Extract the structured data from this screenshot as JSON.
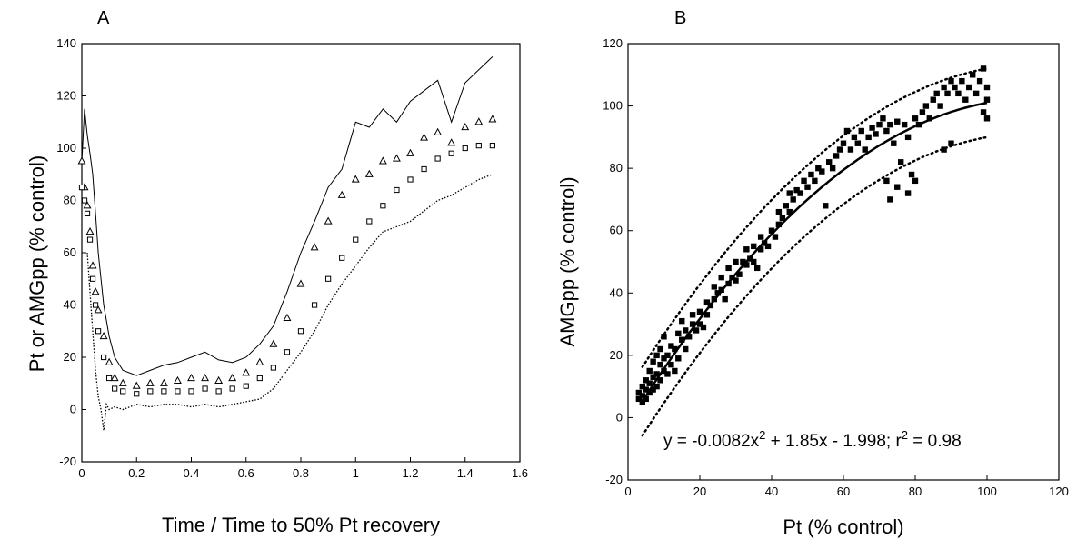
{
  "chart_data": [
    {
      "panel_label": "A",
      "type": "line",
      "xlabel": "Time / Time to 50% Pt recovery",
      "ylabel": "Pt or  AMGpp (% control)",
      "xlim": [
        0,
        1.6
      ],
      "ylim": [
        -20,
        140
      ],
      "xticks": [
        0,
        0.2,
        0.4,
        0.6,
        0.8,
        1,
        1.2,
        1.4,
        1.6
      ],
      "yticks": [
        -20,
        0,
        20,
        40,
        60,
        80,
        100,
        120,
        140
      ],
      "xtick_labels": [
        "0",
        "0.2",
        "0.4",
        "0.6",
        "0.8",
        "1",
        "1.2",
        "1.4",
        "1.6"
      ],
      "ytick_labels": [
        "-20",
        "0",
        "20",
        "40",
        "60",
        "80",
        "100",
        "120",
        "140"
      ],
      "grid": false,
      "series": [
        {
          "style": "solid-line",
          "x": [
            0,
            0.01,
            0.02,
            0.03,
            0.04,
            0.05,
            0.06,
            0.08,
            0.1,
            0.12,
            0.15,
            0.2,
            0.25,
            0.3,
            0.35,
            0.4,
            0.45,
            0.5,
            0.55,
            0.6,
            0.65,
            0.7,
            0.75,
            0.8,
            0.85,
            0.9,
            0.95,
            1.0,
            1.05,
            1.1,
            1.15,
            1.2,
            1.25,
            1.3,
            1.35,
            1.4,
            1.45,
            1.5
          ],
          "y": [
            95,
            115,
            105,
            98,
            90,
            75,
            60,
            40,
            28,
            20,
            15,
            13,
            15,
            17,
            18,
            20,
            22,
            19,
            18,
            20,
            25,
            32,
            45,
            60,
            72,
            85,
            92,
            110,
            108,
            115,
            110,
            118,
            122,
            126,
            110,
            125,
            130,
            135
          ]
        },
        {
          "style": "triangle-markers",
          "x": [
            0,
            0.01,
            0.02,
            0.03,
            0.04,
            0.05,
            0.06,
            0.08,
            0.1,
            0.12,
            0.15,
            0.2,
            0.25,
            0.3,
            0.35,
            0.4,
            0.45,
            0.5,
            0.55,
            0.6,
            0.65,
            0.7,
            0.75,
            0.8,
            0.85,
            0.9,
            0.95,
            1.0,
            1.05,
            1.1,
            1.15,
            1.2,
            1.25,
            1.3,
            1.35,
            1.4,
            1.45,
            1.5
          ],
          "y": [
            95,
            85,
            78,
            68,
            55,
            45,
            38,
            28,
            18,
            12,
            10,
            9,
            10,
            10,
            11,
            12,
            12,
            11,
            12,
            14,
            18,
            25,
            35,
            48,
            62,
            72,
            82,
            88,
            90,
            95,
            96,
            98,
            104,
            106,
            102,
            108,
            110,
            111
          ]
        },
        {
          "style": "square-markers",
          "x": [
            0,
            0.01,
            0.02,
            0.03,
            0.04,
            0.05,
            0.06,
            0.08,
            0.1,
            0.12,
            0.15,
            0.2,
            0.25,
            0.3,
            0.35,
            0.4,
            0.45,
            0.5,
            0.55,
            0.6,
            0.65,
            0.7,
            0.75,
            0.8,
            0.85,
            0.9,
            0.95,
            1.0,
            1.05,
            1.1,
            1.15,
            1.2,
            1.25,
            1.3,
            1.35,
            1.4,
            1.45,
            1.5
          ],
          "y": [
            85,
            80,
            75,
            65,
            50,
            40,
            30,
            20,
            12,
            8,
            7,
            6,
            7,
            7,
            7,
            7,
            8,
            7,
            8,
            9,
            12,
            16,
            22,
            30,
            40,
            50,
            58,
            65,
            72,
            78,
            84,
            88,
            92,
            96,
            98,
            100,
            101,
            101
          ]
        },
        {
          "style": "dotted-line",
          "x": [
            0.02,
            0.03,
            0.04,
            0.05,
            0.06,
            0.07,
            0.08,
            0.09,
            0.1,
            0.12,
            0.15,
            0.2,
            0.25,
            0.3,
            0.35,
            0.4,
            0.45,
            0.5,
            0.55,
            0.6,
            0.65,
            0.7,
            0.75,
            0.8,
            0.85,
            0.9,
            0.95,
            1.0,
            1.05,
            1.1,
            1.15,
            1.2,
            1.25,
            1.3,
            1.35,
            1.4,
            1.45,
            1.5
          ],
          "y": [
            60,
            45,
            30,
            15,
            5,
            0,
            -8,
            2,
            0,
            1,
            0,
            2,
            1,
            2,
            2,
            1,
            2,
            1,
            2,
            3,
            4,
            8,
            15,
            22,
            30,
            40,
            48,
            55,
            62,
            68,
            70,
            72,
            76,
            80,
            82,
            85,
            88,
            90
          ]
        }
      ]
    },
    {
      "panel_label": "B",
      "type": "scatter",
      "xlabel": "Pt (% control)",
      "ylabel": "AMGpp (% control)",
      "xlim": [
        0,
        120
      ],
      "ylim": [
        -20,
        120
      ],
      "xticks": [
        0,
        20,
        40,
        60,
        80,
        100,
        120
      ],
      "yticks": [
        -20,
        0,
        20,
        40,
        60,
        80,
        100,
        120
      ],
      "xtick_labels": [
        "0",
        "20",
        "40",
        "60",
        "80",
        "100",
        "120"
      ],
      "ytick_labels": [
        "-20",
        "0",
        "20",
        "40",
        "60",
        "80",
        "100",
        "120"
      ],
      "grid": false,
      "annotation_parts": [
        "y = -0.0082x",
        "2",
        " + 1.85x - 1.998; r",
        "2",
        " = 0.98"
      ],
      "fit": {
        "a": -0.0082,
        "b": 1.85,
        "c": -1.998,
        "x_range": [
          4,
          100
        ],
        "r2": 0.98
      },
      "prediction_band": {
        "offset": 11,
        "x_range": [
          4,
          100
        ]
      },
      "points": [
        [
          3,
          6
        ],
        [
          3,
          8
        ],
        [
          4,
          5
        ],
        [
          4,
          7
        ],
        [
          4,
          10
        ],
        [
          5,
          6
        ],
        [
          5,
          9
        ],
        [
          5,
          12
        ],
        [
          6,
          8
        ],
        [
          6,
          11
        ],
        [
          6,
          15
        ],
        [
          7,
          9
        ],
        [
          7,
          13
        ],
        [
          7,
          18
        ],
        [
          8,
          10
        ],
        [
          8,
          14
        ],
        [
          8,
          20
        ],
        [
          9,
          12
        ],
        [
          9,
          17
        ],
        [
          9,
          22
        ],
        [
          10,
          15
        ],
        [
          10,
          19
        ],
        [
          10,
          26
        ],
        [
          11,
          14
        ],
        [
          11,
          20
        ],
        [
          12,
          17
        ],
        [
          12,
          23
        ],
        [
          13,
          15
        ],
        [
          13,
          22
        ],
        [
          14,
          19
        ],
        [
          14,
          27
        ],
        [
          15,
          25
        ],
        [
          15,
          31
        ],
        [
          16,
          22
        ],
        [
          16,
          28
        ],
        [
          17,
          26
        ],
        [
          18,
          30
        ],
        [
          18,
          33
        ],
        [
          19,
          28
        ],
        [
          20,
          30
        ],
        [
          20,
          34
        ],
        [
          21,
          29
        ],
        [
          22,
          33
        ],
        [
          22,
          37
        ],
        [
          23,
          36
        ],
        [
          24,
          38
        ],
        [
          24,
          42
        ],
        [
          25,
          40
        ],
        [
          26,
          41
        ],
        [
          26,
          45
        ],
        [
          27,
          38
        ],
        [
          28,
          43
        ],
        [
          28,
          48
        ],
        [
          29,
          45
        ],
        [
          30,
          44
        ],
        [
          30,
          50
        ],
        [
          31,
          46
        ],
        [
          32,
          50
        ],
        [
          33,
          49
        ],
        [
          33,
          54
        ],
        [
          34,
          51
        ],
        [
          35,
          50
        ],
        [
          35,
          55
        ],
        [
          36,
          48
        ],
        [
          37,
          54
        ],
        [
          37,
          58
        ],
        [
          38,
          56
        ],
        [
          39,
          55
        ],
        [
          40,
          60
        ],
        [
          41,
          58
        ],
        [
          42,
          62
        ],
        [
          42,
          66
        ],
        [
          43,
          64
        ],
        [
          44,
          68
        ],
        [
          45,
          66
        ],
        [
          45,
          72
        ],
        [
          46,
          70
        ],
        [
          47,
          73
        ],
        [
          48,
          72
        ],
        [
          49,
          76
        ],
        [
          50,
          74
        ],
        [
          51,
          78
        ],
        [
          52,
          76
        ],
        [
          53,
          80
        ],
        [
          54,
          79
        ],
        [
          55,
          68
        ],
        [
          56,
          82
        ],
        [
          57,
          80
        ],
        [
          58,
          84
        ],
        [
          59,
          86
        ],
        [
          60,
          88
        ],
        [
          61,
          92
        ],
        [
          62,
          86
        ],
        [
          63,
          90
        ],
        [
          64,
          88
        ],
        [
          65,
          92
        ],
        [
          66,
          86
        ],
        [
          67,
          90
        ],
        [
          68,
          93
        ],
        [
          69,
          91
        ],
        [
          70,
          94
        ],
        [
          71,
          96
        ],
        [
          72,
          92
        ],
        [
          72,
          76
        ],
        [
          73,
          70
        ],
        [
          73,
          94
        ],
        [
          74,
          88
        ],
        [
          75,
          95
        ],
        [
          75,
          74
        ],
        [
          76,
          82
        ],
        [
          77,
          94
        ],
        [
          78,
          72
        ],
        [
          78,
          90
        ],
        [
          79,
          78
        ],
        [
          80,
          96
        ],
        [
          80,
          76
        ],
        [
          81,
          94
        ],
        [
          82,
          98
        ],
        [
          83,
          100
        ],
        [
          84,
          96
        ],
        [
          85,
          102
        ],
        [
          86,
          104
        ],
        [
          87,
          100
        ],
        [
          88,
          106
        ],
        [
          88,
          86
        ],
        [
          89,
          104
        ],
        [
          90,
          108
        ],
        [
          90,
          88
        ],
        [
          91,
          106
        ],
        [
          92,
          104
        ],
        [
          93,
          108
        ],
        [
          94,
          102
        ],
        [
          95,
          106
        ],
        [
          96,
          110
        ],
        [
          97,
          104
        ],
        [
          98,
          108
        ],
        [
          99,
          112
        ],
        [
          99,
          98
        ],
        [
          100,
          102
        ],
        [
          100,
          106
        ],
        [
          100,
          96
        ]
      ]
    }
  ]
}
